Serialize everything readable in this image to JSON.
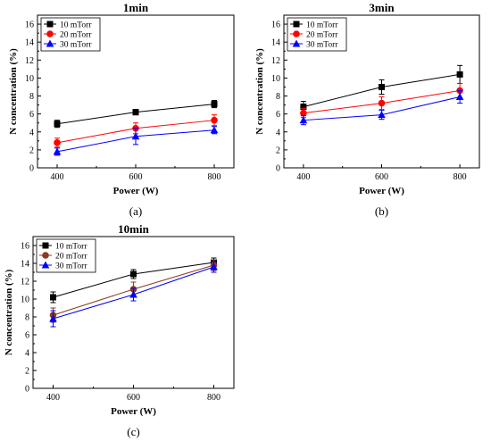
{
  "chart_data": [
    {
      "type": "line",
      "title": "1min",
      "panel_label": "(a)",
      "xlabel": "Power (W)",
      "ylabel": "N concentration (%)",
      "x": [
        400,
        600,
        800
      ],
      "xticks": [
        400,
        600,
        800
      ],
      "xlim": [
        350,
        850
      ],
      "ylim": [
        0,
        17
      ],
      "yticks": [
        0,
        2,
        4,
        6,
        8,
        10,
        12,
        14,
        16
      ],
      "legend_position": "top-left",
      "series": [
        {
          "name": "10 mTorr",
          "values": [
            4.9,
            6.2,
            7.1
          ],
          "errors": [
            0.4,
            0.3,
            0.4
          ],
          "color": "#000000",
          "marker": "square"
        },
        {
          "name": "20 mTorr",
          "values": [
            2.8,
            4.4,
            5.3
          ],
          "errors": [
            0.5,
            0.6,
            0.6
          ],
          "color": "#ff0000",
          "marker": "circle"
        },
        {
          "name": "30 mTorr",
          "values": [
            1.8,
            3.5,
            4.2
          ],
          "errors": [
            0.4,
            0.9,
            0.4
          ],
          "color": "#0000ff",
          "marker": "triangle"
        }
      ]
    },
    {
      "type": "line",
      "title": "3min",
      "panel_label": "(b)",
      "xlabel": "Power (W)",
      "ylabel": "N concentration (%)",
      "x": [
        400,
        600,
        800
      ],
      "xticks": [
        400,
        600,
        800
      ],
      "xlim": [
        350,
        850
      ],
      "ylim": [
        0,
        17
      ],
      "yticks": [
        0,
        2,
        4,
        6,
        8,
        10,
        12,
        14,
        16
      ],
      "legend_position": "top-left",
      "series": [
        {
          "name": "10 mTorr",
          "values": [
            6.8,
            9.0,
            10.4
          ],
          "errors": [
            0.6,
            0.8,
            1.0
          ],
          "color": "#000000",
          "marker": "square"
        },
        {
          "name": "20 mTorr",
          "values": [
            6.1,
            7.2,
            8.6
          ],
          "errors": [
            0.5,
            0.7,
            0.8
          ],
          "color": "#ff0000",
          "marker": "circle"
        },
        {
          "name": "30 mTorr",
          "values": [
            5.3,
            5.9,
            7.9
          ],
          "errors": [
            0.5,
            0.5,
            0.7
          ],
          "color": "#0000ff",
          "marker": "triangle"
        }
      ]
    },
    {
      "type": "line",
      "title": "10min",
      "panel_label": "(c)",
      "xlabel": "Power (W)",
      "ylabel": "N concentration (%)",
      "x": [
        400,
        600,
        800
      ],
      "xticks": [
        400,
        600,
        800
      ],
      "xlim": [
        350,
        850
      ],
      "ylim": [
        0,
        17
      ],
      "yticks": [
        0,
        2,
        4,
        6,
        8,
        10,
        12,
        14,
        16
      ],
      "legend_position": "top-left",
      "series": [
        {
          "name": "10 mTorr",
          "values": [
            10.2,
            12.8,
            14.1
          ],
          "errors": [
            0.6,
            0.5,
            0.5
          ],
          "color": "#000000",
          "marker": "square"
        },
        {
          "name": "20 mTorr",
          "values": [
            8.2,
            11.1,
            13.8
          ],
          "errors": [
            0.8,
            0.8,
            0.6
          ],
          "color": "#8b3a1e",
          "marker": "circle"
        },
        {
          "name": "30 mTorr",
          "values": [
            7.8,
            10.5,
            13.6
          ],
          "errors": [
            0.9,
            0.7,
            0.6
          ],
          "color": "#0000ff",
          "marker": "triangle"
        }
      ]
    }
  ]
}
